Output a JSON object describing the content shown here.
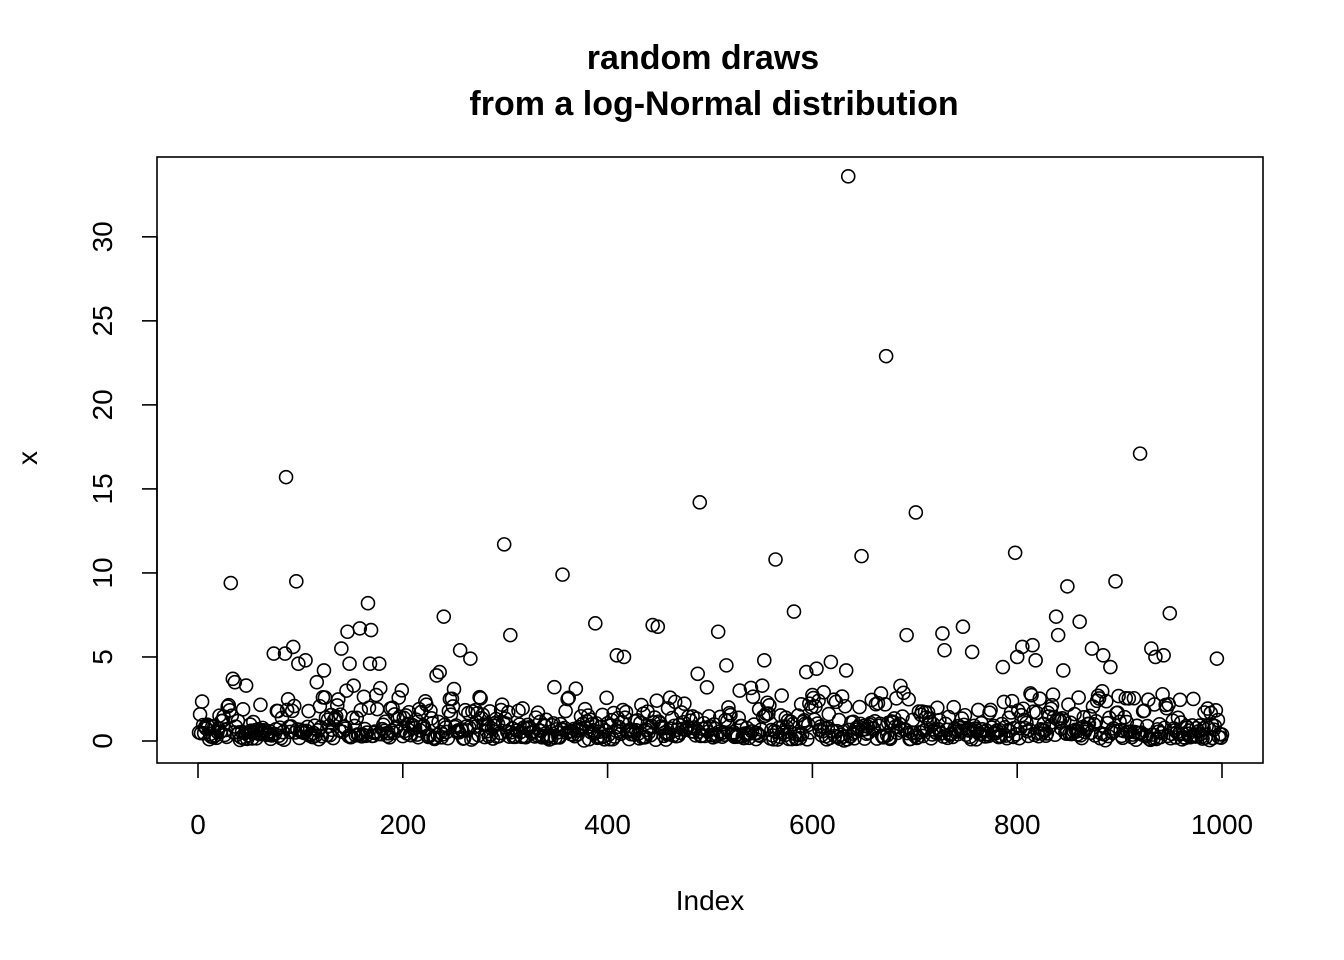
{
  "chart_data": {
    "type": "scatter",
    "title_line1": "random draws",
    "title_line2": "from a log-Normal distribution",
    "xlabel": "Index",
    "ylabel": "x",
    "xlim": [
      0,
      1000
    ],
    "ylim": [
      0,
      33.5
    ],
    "x_ticks": [
      0,
      200,
      400,
      600,
      800,
      1000
    ],
    "y_ticks": [
      0,
      5,
      10,
      15,
      20,
      25,
      30
    ],
    "x_tick_labels": [
      "0",
      "200",
      "400",
      "600",
      "800",
      "1000"
    ],
    "y_tick_labels": [
      "0",
      "5",
      "10",
      "15",
      "20",
      "25",
      "30"
    ],
    "grid": false,
    "legend": "none",
    "n_points": 1000,
    "notable_points": [
      {
        "x": 32,
        "y": 9.4
      },
      {
        "x": 34,
        "y": 3.7
      },
      {
        "x": 36,
        "y": 3.5
      },
      {
        "x": 47,
        "y": 3.3
      },
      {
        "x": 74,
        "y": 5.2
      },
      {
        "x": 85,
        "y": 5.2
      },
      {
        "x": 86,
        "y": 15.7
      },
      {
        "x": 93,
        "y": 5.6
      },
      {
        "x": 96,
        "y": 9.5
      },
      {
        "x": 98,
        "y": 4.6
      },
      {
        "x": 105,
        "y": 4.8
      },
      {
        "x": 116,
        "y": 3.5
      },
      {
        "x": 123,
        "y": 4.2
      },
      {
        "x": 140,
        "y": 5.5
      },
      {
        "x": 146,
        "y": 6.5
      },
      {
        "x": 148,
        "y": 4.6
      },
      {
        "x": 158,
        "y": 6.7
      },
      {
        "x": 166,
        "y": 8.2
      },
      {
        "x": 168,
        "y": 4.6
      },
      {
        "x": 169,
        "y": 6.6
      },
      {
        "x": 177,
        "y": 4.6
      },
      {
        "x": 233,
        "y": 3.9
      },
      {
        "x": 236,
        "y": 4.1
      },
      {
        "x": 240,
        "y": 7.4
      },
      {
        "x": 256,
        "y": 5.4
      },
      {
        "x": 266,
        "y": 4.9
      },
      {
        "x": 299,
        "y": 11.7
      },
      {
        "x": 305,
        "y": 6.3
      },
      {
        "x": 348,
        "y": 3.2
      },
      {
        "x": 356,
        "y": 9.9
      },
      {
        "x": 388,
        "y": 7.0
      },
      {
        "x": 409,
        "y": 5.1
      },
      {
        "x": 416,
        "y": 5.0
      },
      {
        "x": 444,
        "y": 6.9
      },
      {
        "x": 449,
        "y": 6.8
      },
      {
        "x": 488,
        "y": 4.0
      },
      {
        "x": 490,
        "y": 14.2
      },
      {
        "x": 508,
        "y": 6.5
      },
      {
        "x": 516,
        "y": 4.5
      },
      {
        "x": 553,
        "y": 4.8
      },
      {
        "x": 564,
        "y": 10.8
      },
      {
        "x": 582,
        "y": 7.7
      },
      {
        "x": 594,
        "y": 4.1
      },
      {
        "x": 604,
        "y": 4.3
      },
      {
        "x": 618,
        "y": 4.7
      },
      {
        "x": 633,
        "y": 4.2
      },
      {
        "x": 635,
        "y": 33.6
      },
      {
        "x": 648,
        "y": 11.0
      },
      {
        "x": 672,
        "y": 22.9
      },
      {
        "x": 692,
        "y": 6.3
      },
      {
        "x": 701,
        "y": 13.6
      },
      {
        "x": 727,
        "y": 6.4
      },
      {
        "x": 729,
        "y": 5.4
      },
      {
        "x": 747,
        "y": 6.8
      },
      {
        "x": 756,
        "y": 5.3
      },
      {
        "x": 786,
        "y": 4.4
      },
      {
        "x": 798,
        "y": 11.2
      },
      {
        "x": 800,
        "y": 5.0
      },
      {
        "x": 805,
        "y": 5.6
      },
      {
        "x": 815,
        "y": 5.7
      },
      {
        "x": 818,
        "y": 4.8
      },
      {
        "x": 838,
        "y": 7.4
      },
      {
        "x": 840,
        "y": 6.3
      },
      {
        "x": 845,
        "y": 4.2
      },
      {
        "x": 849,
        "y": 9.2
      },
      {
        "x": 861,
        "y": 7.1
      },
      {
        "x": 873,
        "y": 5.5
      },
      {
        "x": 884,
        "y": 5.1
      },
      {
        "x": 891,
        "y": 4.4
      },
      {
        "x": 896,
        "y": 9.5
      },
      {
        "x": 920,
        "y": 17.1
      },
      {
        "x": 931,
        "y": 5.5
      },
      {
        "x": 935,
        "y": 5.0
      },
      {
        "x": 943,
        "y": 5.1
      },
      {
        "x": 949,
        "y": 7.6
      },
      {
        "x": 995,
        "y": 4.9
      }
    ]
  }
}
